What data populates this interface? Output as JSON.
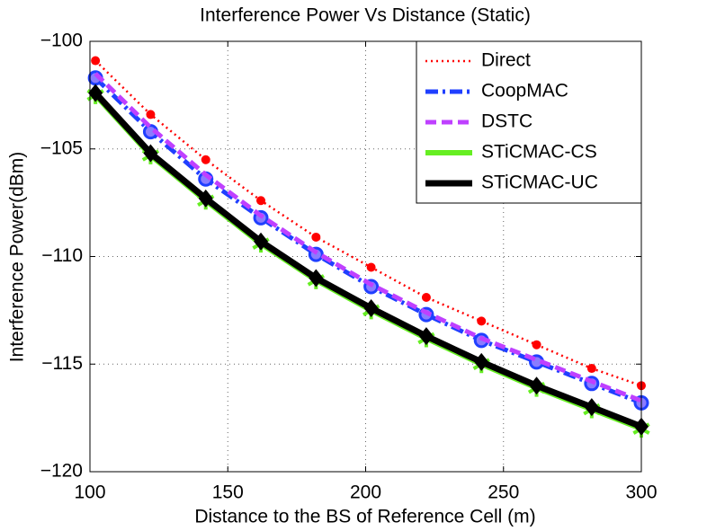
{
  "chart_data": {
    "type": "line",
    "title": "Interference Power Vs Distance (Static)",
    "x_label": "Distance to the BS of Reference Cell (m)",
    "y_label": "Interference Power(dBm)",
    "x": [
      102,
      122,
      142,
      162,
      182,
      202,
      222,
      242,
      262,
      282,
      300
    ],
    "series": [
      {
        "name": "Direct",
        "color": "#ff0000",
        "line_style": "dotted",
        "marker": "dot",
        "values": [
          -100.9,
          -103.4,
          -105.5,
          -107.4,
          -109.1,
          -110.5,
          -111.9,
          -113.0,
          -114.1,
          -115.2,
          -116.0
        ]
      },
      {
        "name": "CoopMAC",
        "color": "#1f3fff",
        "line_style": "dashdot",
        "marker": "circle",
        "values": [
          -101.7,
          -104.2,
          -106.4,
          -108.2,
          -109.9,
          -111.4,
          -112.7,
          -113.9,
          -114.9,
          -115.9,
          -116.8
        ]
      },
      {
        "name": "DSTC",
        "color": "#bf40ff",
        "line_style": "dashed",
        "marker": "none",
        "values": [
          -101.5,
          -104.0,
          -106.2,
          -108.1,
          -109.8,
          -111.3,
          -112.6,
          -113.8,
          -114.8,
          -115.8,
          -116.7
        ]
      },
      {
        "name": "STiCMAC-CS",
        "color": "#66ee22",
        "line_style": "solid",
        "marker": "star",
        "values": [
          -102.5,
          -105.3,
          -107.4,
          -109.4,
          -111.1,
          -112.5,
          -113.8,
          -115.0,
          -116.1,
          -117.1,
          -118.0
        ]
      },
      {
        "name": "STiCMAC-UC",
        "color": "#000000",
        "line_style": "solid",
        "marker": "diamond",
        "values": [
          -102.4,
          -105.2,
          -107.3,
          -109.3,
          -111.0,
          -112.4,
          -113.7,
          -114.9,
          -116.0,
          -117.0,
          -117.9
        ]
      }
    ],
    "xlim": [
      100,
      300
    ],
    "xticks": [
      100,
      150,
      200,
      250,
      300
    ],
    "ylim": [
      -120,
      -100
    ],
    "yticks": [
      {
        "value": -100,
        "label": "−100"
      },
      {
        "value": -105,
        "label": "−105"
      },
      {
        "value": -110,
        "label": "−110"
      },
      {
        "value": -115,
        "label": "−115"
      },
      {
        "value": -120,
        "label": "−120"
      }
    ],
    "grid": true,
    "legend": "top-right"
  }
}
